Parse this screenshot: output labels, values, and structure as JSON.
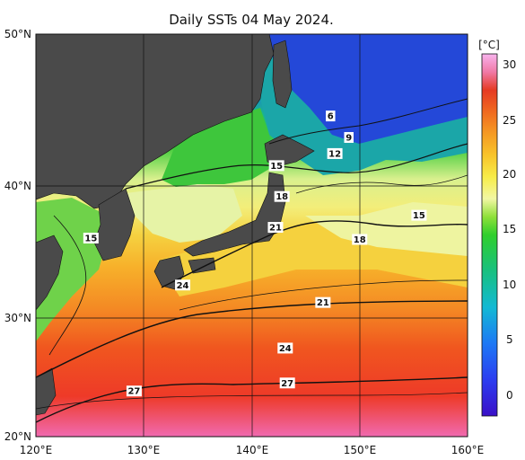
{
  "title": "Daily SSTs 04 May 2024.",
  "map": {
    "lon_range": [
      120,
      160
    ],
    "lat_range": [
      20,
      50
    ],
    "x_ticks": [
      "120°E",
      "130°E",
      "140°E",
      "150°E",
      "160°E"
    ],
    "y_ticks": [
      "50°N",
      "40°N",
      "30°N",
      "20°N"
    ],
    "land_color": "#4a4a4a",
    "grid": true
  },
  "colorbar": {
    "unit": "[°C]",
    "ticks": [
      "30",
      "25",
      "20",
      "15",
      "10",
      "5",
      "0"
    ],
    "range": [
      -2,
      31
    ]
  },
  "contour_labels": [
    {
      "text": "6",
      "lon": 147.3,
      "lat": 43.9
    },
    {
      "text": "9",
      "lon": 149.0,
      "lat": 42.3
    },
    {
      "text": "12",
      "lon": 147.7,
      "lat": 41.1
    },
    {
      "text": "15",
      "lon": 142.3,
      "lat": 40.2
    },
    {
      "text": "18",
      "lon": 142.8,
      "lat": 37.9
    },
    {
      "text": "21",
      "lon": 142.2,
      "lat": 35.6
    },
    {
      "text": "15",
      "lon": 125.1,
      "lat": 34.8
    },
    {
      "text": "18",
      "lon": 150.0,
      "lat": 34.7
    },
    {
      "text": "15",
      "lon": 155.5,
      "lat": 36.5
    },
    {
      "text": "24",
      "lon": 133.6,
      "lat": 31.3
    },
    {
      "text": "21",
      "lon": 146.6,
      "lat": 30.0
    },
    {
      "text": "24",
      "lon": 143.1,
      "lat": 26.6
    },
    {
      "text": "27",
      "lon": 129.1,
      "lat": 23.4
    },
    {
      "text": "27",
      "lon": 143.3,
      "lat": 24.0
    }
  ]
}
